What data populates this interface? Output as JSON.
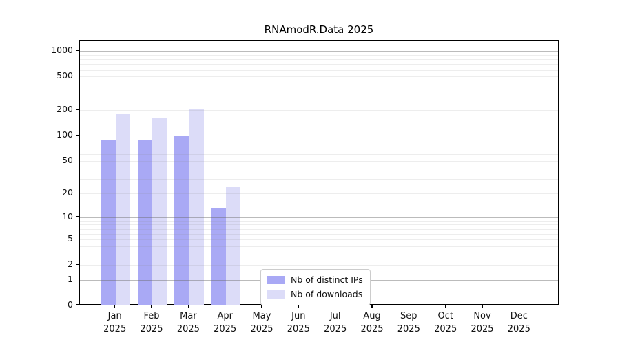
{
  "chart_data": {
    "type": "bar",
    "title": "RNAmodR.Data 2025",
    "categories": [
      "Jan 2025",
      "Feb 2025",
      "Mar 2025",
      "Apr 2025",
      "May 2025",
      "Jun 2025",
      "Jul 2025",
      "Aug 2025",
      "Sep 2025",
      "Oct 2025",
      "Nov 2025",
      "Dec 2025"
    ],
    "series": [
      {
        "name": "Nb of distinct IPs",
        "color": "#a9a9f5",
        "values": [
          90,
          90,
          100,
          13,
          null,
          null,
          null,
          null,
          null,
          null,
          null,
          null
        ]
      },
      {
        "name": "Nb of downloads",
        "color": "#dcdcf8",
        "values": [
          180,
          165,
          210,
          24,
          null,
          null,
          null,
          null,
          null,
          null,
          null,
          null
        ]
      }
    ],
    "y_ticks": [
      0,
      1,
      2,
      5,
      10,
      20,
      50,
      100,
      200,
      500,
      1000
    ],
    "y_scale": "pseudo-log (log10 of 1+x)",
    "ylim": [
      0,
      1000
    ],
    "grid": true,
    "legend_position": "lower center inside plot"
  }
}
